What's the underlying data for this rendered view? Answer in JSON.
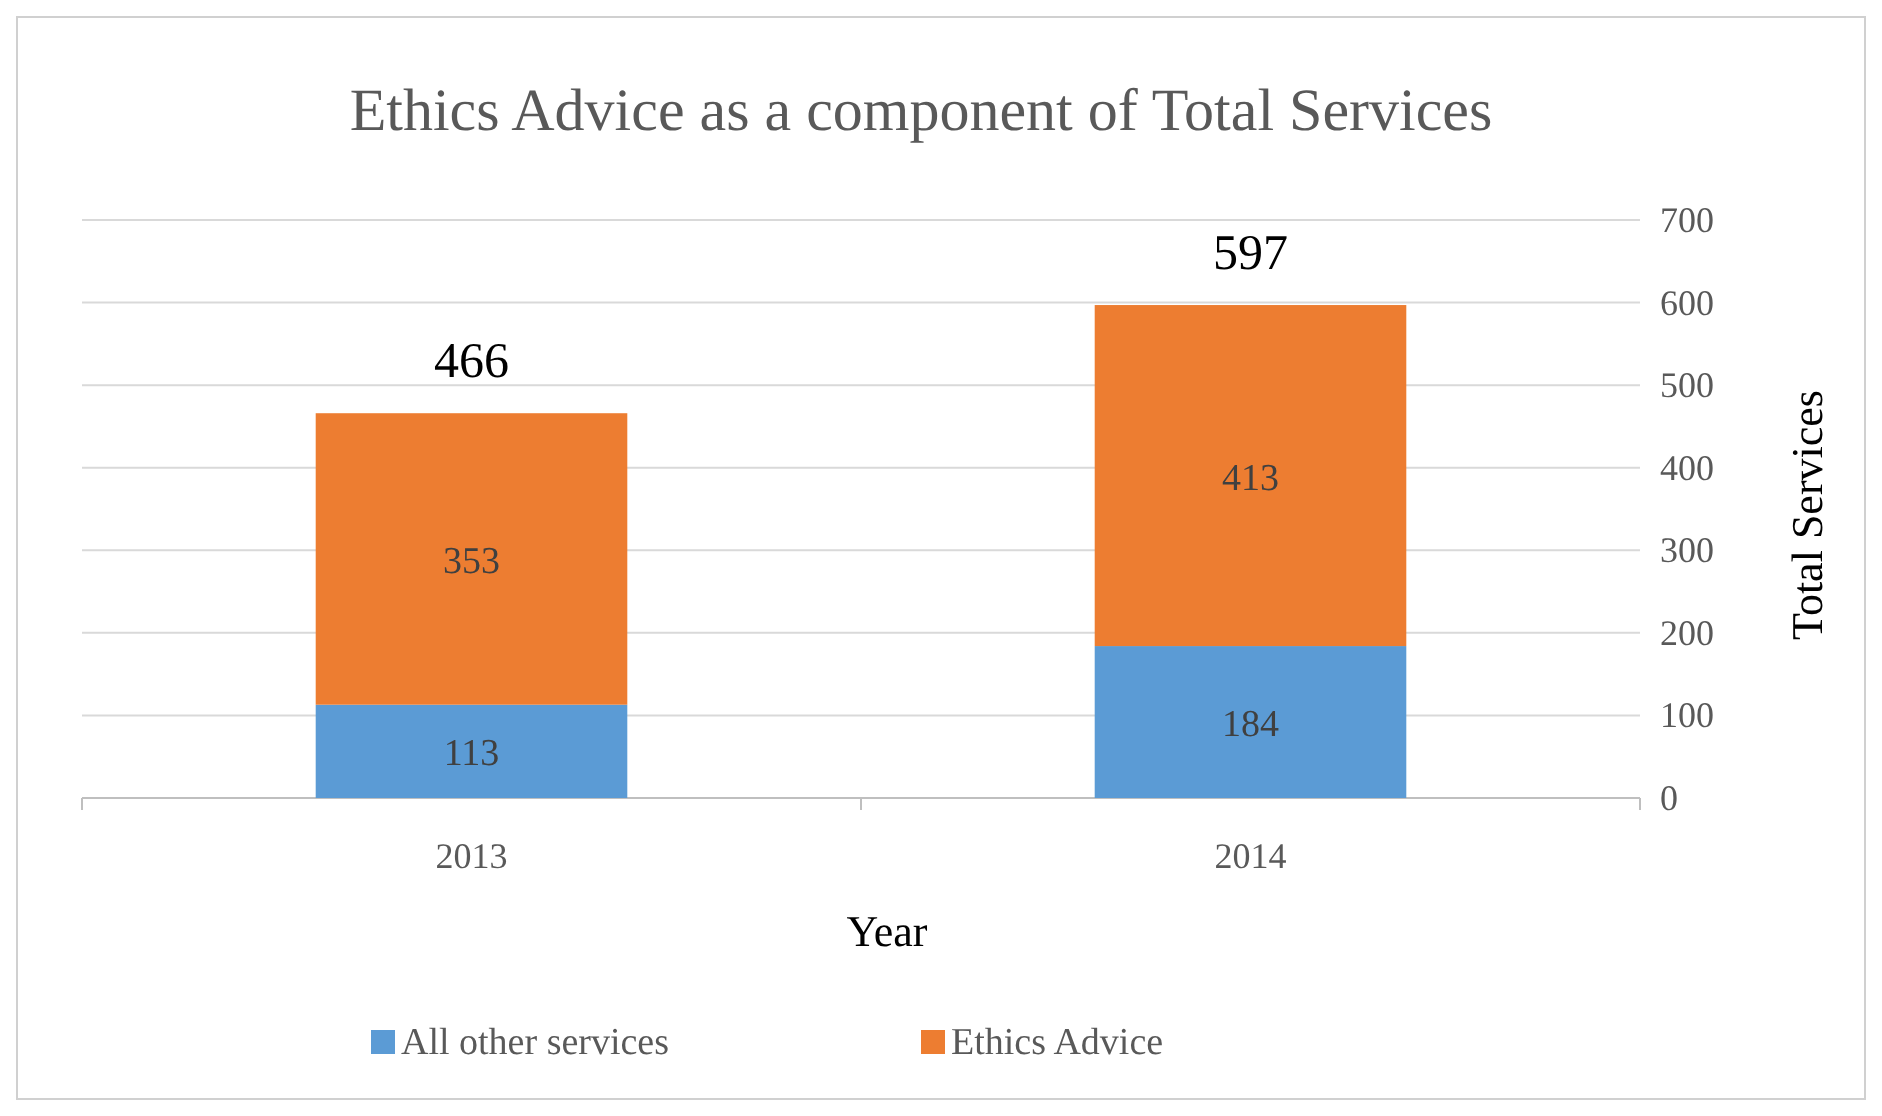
{
  "chart_data": {
    "type": "bar",
    "title": "Ethics Advice as a component of Total Services",
    "xlabel": "Year",
    "ylabel": "Total Services",
    "categories": [
      "2013",
      "2014"
    ],
    "stacked": true,
    "series": [
      {
        "name": "All other services",
        "color": "#5b9bd5",
        "values": [
          113,
          184
        ]
      },
      {
        "name": "Ethics Advice",
        "color": "#ed7d31",
        "values": [
          353,
          413
        ]
      }
    ],
    "ylim": [
      0,
      700
    ],
    "yticks": [
      0,
      100,
      200,
      300,
      400,
      500,
      600,
      700
    ],
    "grid": "y",
    "legend": "bottom",
    "data_labels": true,
    "totals": [
      "466",
      "597"
    ]
  }
}
